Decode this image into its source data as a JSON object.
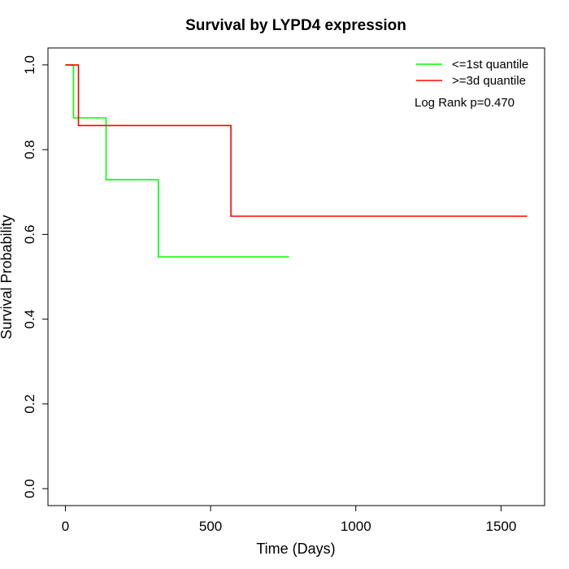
{
  "chart_data": {
    "type": "line",
    "title": "Survival by LYPD4 expression",
    "xlabel": "Time (Days)",
    "ylabel": "Survival Probability",
    "xlim": [
      -60,
      1650
    ],
    "ylim": [
      -0.04,
      1.04
    ],
    "x_ticks": [
      0,
      500,
      1000,
      1500
    ],
    "x_tick_labels": [
      "0",
      "500",
      "1000",
      "1500"
    ],
    "y_ticks": [
      0.0,
      0.2,
      0.4,
      0.6,
      0.8,
      1.0
    ],
    "y_tick_labels": [
      "0.0",
      "0.2",
      "0.4",
      "0.6",
      "0.8",
      "1.0"
    ],
    "grid": false,
    "legend_position": "top-right",
    "series": [
      {
        "name": "<=1st quantile",
        "color": "#00ff00",
        "step": true,
        "x": [
          0,
          28,
          28,
          140,
          140,
          320,
          320,
          770
        ],
        "y": [
          1.0,
          1.0,
          0.875,
          0.875,
          0.729,
          0.729,
          0.547,
          0.547
        ]
      },
      {
        "name": ">=3d quantile",
        "color": "#ff0000",
        "step": true,
        "x": [
          0,
          45,
          45,
          570,
          570,
          1590
        ],
        "y": [
          1.0,
          1.0,
          0.857,
          0.857,
          0.643,
          0.643
        ]
      }
    ],
    "annotation": "Log Rank p=0.470"
  }
}
